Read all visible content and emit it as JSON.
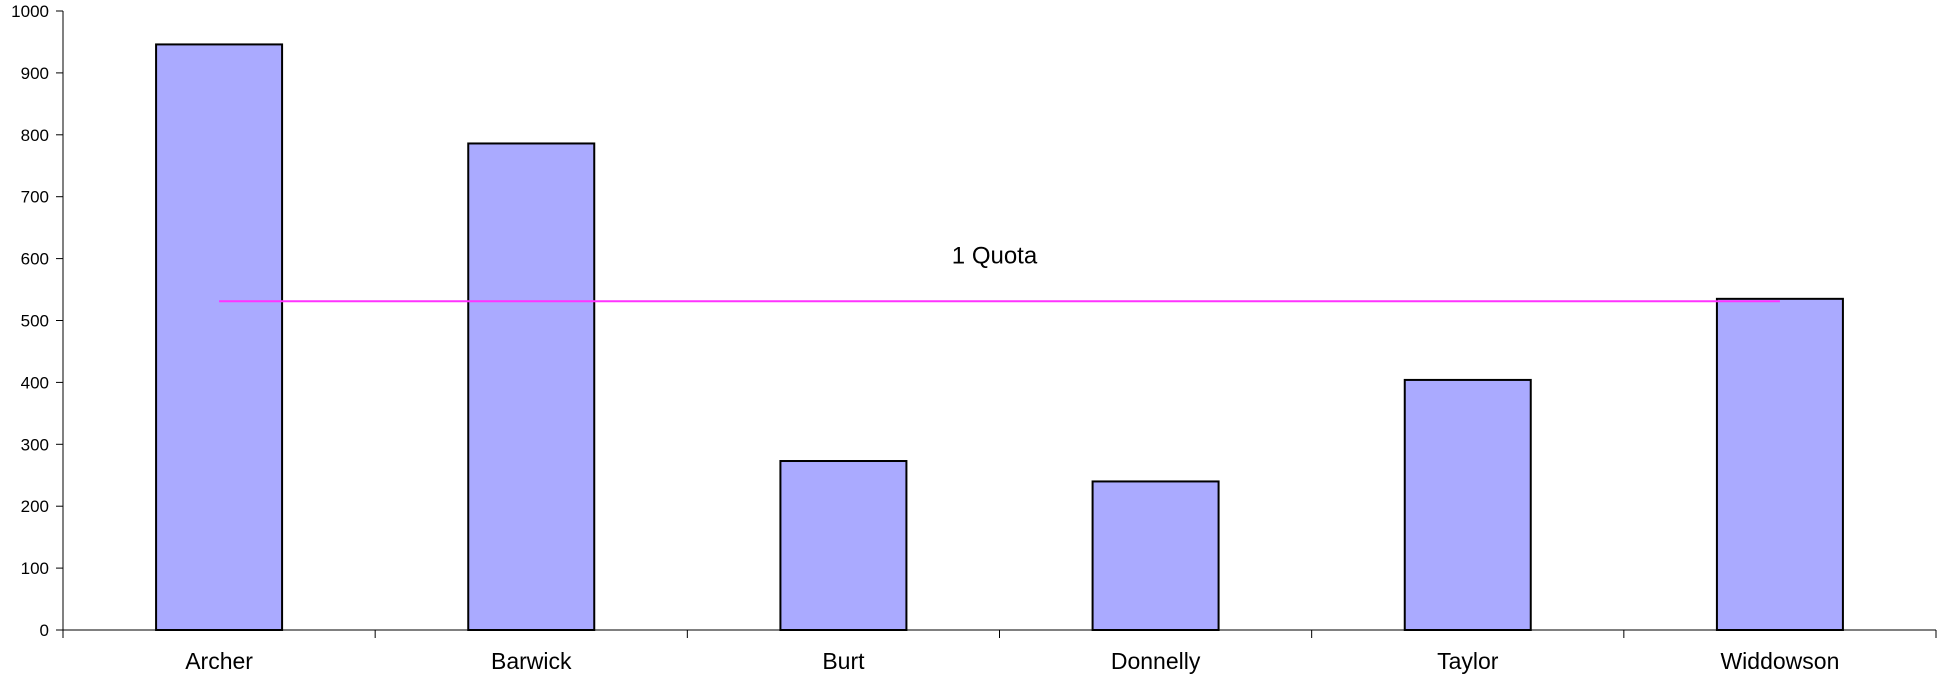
{
  "chart_data": {
    "type": "bar",
    "categories": [
      "Archer",
      "Barwick",
      "Burt",
      "Donnelly",
      "Taylor",
      "Widdowson"
    ],
    "values": [
      946,
      786,
      273,
      240,
      404,
      535
    ],
    "ylim": [
      0,
      1000
    ],
    "yticks": [
      0,
      100,
      200,
      300,
      400,
      500,
      600,
      700,
      800,
      900,
      1000
    ],
    "ytick_labels": [
      "0",
      "100",
      "200",
      "300",
      "400",
      "500",
      "600",
      "700",
      "800",
      "900",
      "1000"
    ],
    "reference_line": {
      "label": "1 Quota",
      "value": 531
    },
    "grid": false,
    "legend": "none",
    "colors": {
      "bar_fill": "#aaaaff",
      "bar_stroke": "#000000",
      "quota_line": "#ff33ff",
      "axis": "#000000"
    }
  }
}
